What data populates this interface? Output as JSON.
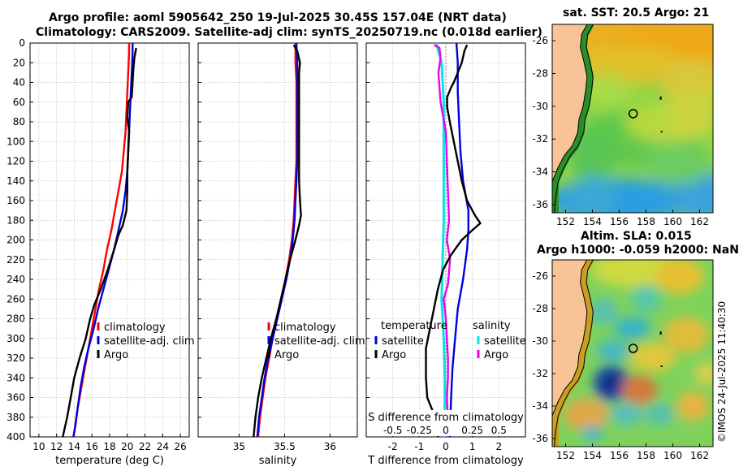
{
  "titles": {
    "line1": "Argo profile: aoml 5905642_250 19-Jul-2025 30.45S 157.04E (NRT data)",
    "line2": "Climatology: CARS2009. Satellite-adj clim: synTS_20250719.nc (0.018d earlier)"
  },
  "copyright": "©IMOS 24-Jul-2025 11:40:30",
  "colors": {
    "climatology": "#ff0000",
    "satellite": "#0000dd",
    "argo": "#000000",
    "sal_sat": "#00e5e5",
    "sal_argo": "#ee00ee",
    "grid": "#c8c8c8",
    "land": "#f8c396"
  },
  "chart_data": [
    {
      "type": "line",
      "id": "temperature",
      "xlabel": "temperature (deg C)",
      "ylabel": "",
      "xlim": [
        9,
        27
      ],
      "ylim": [
        400,
        0
      ],
      "xticks": [
        "10",
        "12",
        "14",
        "16",
        "18",
        "20",
        "22",
        "24",
        "26"
      ],
      "yticks": [
        "0",
        "20",
        "40",
        "60",
        "80",
        "100",
        "120",
        "140",
        "160",
        "180",
        "200",
        "220",
        "240",
        "260",
        "280",
        "300",
        "320",
        "340",
        "360",
        "380",
        "400"
      ],
      "legend": [
        "climatology",
        "satellite-adj. clim",
        "Argo"
      ],
      "series": [
        {
          "name": "climatology",
          "points": [
            [
              20.2,
              0
            ],
            [
              20.2,
              10
            ],
            [
              20.1,
              30
            ],
            [
              20.0,
              50
            ],
            [
              19.9,
              70
            ],
            [
              19.8,
              90
            ],
            [
              19.6,
              110
            ],
            [
              19.4,
              130
            ],
            [
              19.0,
              150
            ],
            [
              18.6,
              170
            ],
            [
              18.2,
              190
            ],
            [
              17.7,
              210
            ],
            [
              17.3,
              230
            ],
            [
              16.8,
              250
            ],
            [
              16.4,
              270
            ],
            [
              16.0,
              290
            ],
            [
              15.6,
              310
            ],
            [
              15.2,
              330
            ],
            [
              14.8,
              350
            ],
            [
              14.4,
              370
            ],
            [
              14.1,
              390
            ],
            [
              13.9,
              400
            ]
          ]
        },
        {
          "name": "satellite-adj. clim",
          "points": [
            [
              20.6,
              0
            ],
            [
              20.6,
              10
            ],
            [
              20.5,
              30
            ],
            [
              20.4,
              50
            ],
            [
              20.3,
              70
            ],
            [
              20.2,
              90
            ],
            [
              20.1,
              110
            ],
            [
              20.0,
              130
            ],
            [
              19.8,
              150
            ],
            [
              19.5,
              170
            ],
            [
              19.0,
              190
            ],
            [
              18.5,
              210
            ],
            [
              17.9,
              230
            ],
            [
              17.3,
              250
            ],
            [
              16.7,
              270
            ],
            [
              16.2,
              290
            ],
            [
              15.6,
              310
            ],
            [
              15.1,
              330
            ],
            [
              14.7,
              350
            ],
            [
              14.4,
              370
            ],
            [
              14.1,
              390
            ],
            [
              13.9,
              400
            ]
          ]
        },
        {
          "name": "Argo",
          "points": [
            [
              21.0,
              5
            ],
            [
              20.8,
              15
            ],
            [
              20.7,
              25
            ],
            [
              20.6,
              40
            ],
            [
              20.5,
              55
            ],
            [
              20.1,
              60
            ],
            [
              20.0,
              75
            ],
            [
              20.2,
              90
            ],
            [
              20.1,
              110
            ],
            [
              20.0,
              130
            ],
            [
              20.0,
              150
            ],
            [
              19.9,
              170
            ],
            [
              19.5,
              185
            ],
            [
              19.0,
              195
            ],
            [
              18.5,
              210
            ],
            [
              17.8,
              230
            ],
            [
              17.0,
              250
            ],
            [
              16.3,
              265
            ],
            [
              15.8,
              280
            ],
            [
              15.3,
              300
            ],
            [
              14.6,
              320
            ],
            [
              14.0,
              340
            ],
            [
              13.6,
              360
            ],
            [
              13.2,
              380
            ],
            [
              12.7,
              400
            ]
          ]
        }
      ]
    },
    {
      "type": "line",
      "id": "salinity",
      "xlabel": "salinity",
      "ylabel": "",
      "xlim": [
        34.55,
        36.3
      ],
      "ylim": [
        400,
        0
      ],
      "xticks": [
        "35",
        "35.5",
        "36"
      ],
      "legend": [
        "climatology",
        "satellite-adj. clim",
        "Argo"
      ],
      "series": [
        {
          "name": "climatology",
          "points": [
            [
              35.62,
              0
            ],
            [
              35.62,
              20
            ],
            [
              35.63,
              40
            ],
            [
              35.63,
              60
            ],
            [
              35.63,
              80
            ],
            [
              35.63,
              100
            ],
            [
              35.63,
              120
            ],
            [
              35.62,
              140
            ],
            [
              35.61,
              160
            ],
            [
              35.6,
              180
            ],
            [
              35.58,
              200
            ],
            [
              35.55,
              220
            ],
            [
              35.51,
              240
            ],
            [
              35.47,
              260
            ],
            [
              35.42,
              280
            ],
            [
              35.37,
              300
            ],
            [
              35.33,
              320
            ],
            [
              35.29,
              340
            ],
            [
              35.26,
              360
            ],
            [
              35.23,
              380
            ],
            [
              35.21,
              400
            ]
          ]
        },
        {
          "name": "satellite-adj. clim",
          "points": [
            [
              35.63,
              0
            ],
            [
              35.64,
              20
            ],
            [
              35.64,
              40
            ],
            [
              35.64,
              60
            ],
            [
              35.64,
              80
            ],
            [
              35.64,
              100
            ],
            [
              35.64,
              120
            ],
            [
              35.63,
              140
            ],
            [
              35.62,
              160
            ],
            [
              35.61,
              180
            ],
            [
              35.59,
              200
            ],
            [
              35.56,
              220
            ],
            [
              35.52,
              240
            ],
            [
              35.47,
              260
            ],
            [
              35.42,
              280
            ],
            [
              35.37,
              300
            ],
            [
              35.32,
              320
            ],
            [
              35.28,
              340
            ],
            [
              35.25,
              360
            ],
            [
              35.22,
              380
            ],
            [
              35.2,
              400
            ]
          ]
        },
        {
          "name": "Argo",
          "points": [
            [
              35.6,
              2
            ],
            [
              35.64,
              8
            ],
            [
              35.67,
              20
            ],
            [
              35.66,
              30
            ],
            [
              35.66,
              50
            ],
            [
              35.66,
              80
            ],
            [
              35.66,
              110
            ],
            [
              35.66,
              140
            ],
            [
              35.67,
              160
            ],
            [
              35.68,
              175
            ],
            [
              35.66,
              185
            ],
            [
              35.62,
              200
            ],
            [
              35.56,
              220
            ],
            [
              35.51,
              240
            ],
            [
              35.46,
              260
            ],
            [
              35.41,
              280
            ],
            [
              35.35,
              300
            ],
            [
              35.3,
              320
            ],
            [
              35.25,
              340
            ],
            [
              35.21,
              360
            ],
            [
              35.18,
              380
            ],
            [
              35.16,
              400
            ]
          ]
        }
      ]
    },
    {
      "type": "line",
      "id": "difference",
      "xlabel": "T difference from climatology",
      "xlabel2": "S difference from climatology",
      "xlim": [
        -3,
        3
      ],
      "ylim": [
        400,
        0
      ],
      "xticks": [
        "-2",
        "-1",
        "0",
        "1",
        "2"
      ],
      "xticks2": [
        "-0.5",
        "-0.25",
        "0",
        "0.25",
        "0.5"
      ],
      "legend_t_title": "temperature",
      "legend_s_title": "salinity",
      "legend_t": [
        "satellite",
        "Argo"
      ],
      "legend_s": [
        "satellite",
        "Argo"
      ],
      "series": [
        {
          "name": "T satellite",
          "points": [
            [
              0.4,
              0
            ],
            [
              0.45,
              20
            ],
            [
              0.45,
              50
            ],
            [
              0.5,
              80
            ],
            [
              0.55,
              110
            ],
            [
              0.65,
              140
            ],
            [
              0.85,
              170
            ],
            [
              0.85,
              190
            ],
            [
              0.8,
              210
            ],
            [
              0.65,
              240
            ],
            [
              0.45,
              270
            ],
            [
              0.35,
              300
            ],
            [
              0.25,
              330
            ],
            [
              0.2,
              360
            ],
            [
              0.15,
              400
            ]
          ]
        },
        {
          "name": "T Argo",
          "points": [
            [
              0.8,
              2
            ],
            [
              0.7,
              8
            ],
            [
              0.6,
              20
            ],
            [
              0.45,
              30
            ],
            [
              0.3,
              40
            ],
            [
              0.2,
              45
            ],
            [
              0.05,
              55
            ],
            [
              0.05,
              65
            ],
            [
              0.15,
              80
            ],
            [
              0.3,
              100
            ],
            [
              0.45,
              120
            ],
            [
              0.6,
              140
            ],
            [
              0.8,
              160
            ],
            [
              1.1,
              175
            ],
            [
              1.3,
              183
            ],
            [
              1.0,
              190
            ],
            [
              0.6,
              200
            ],
            [
              0.2,
              215
            ],
            [
              -0.1,
              230
            ],
            [
              -0.3,
              250
            ],
            [
              -0.45,
              270
            ],
            [
              -0.6,
              290
            ],
            [
              -0.75,
              310
            ],
            [
              -0.75,
              340
            ],
            [
              -0.7,
              360
            ],
            [
              -0.4,
              380
            ],
            [
              -0.3,
              400
            ]
          ]
        },
        {
          "name": "S satellite",
          "points": [
            [
              -0.09,
              0
            ],
            [
              -0.04,
              20
            ],
            [
              -0.02,
              60
            ],
            [
              -0.02,
              100
            ],
            [
              -0.02,
              140
            ],
            [
              -0.02,
              180
            ],
            [
              -0.03,
              220
            ],
            [
              -0.04,
              260
            ],
            [
              -0.02,
              300
            ],
            [
              -0.01,
              340
            ],
            [
              -0.01,
              400
            ]
          ]
        },
        {
          "name": "S Argo",
          "points": [
            [
              -0.11,
              2
            ],
            [
              -0.06,
              5
            ],
            [
              -0.05,
              15
            ],
            [
              -0.07,
              30
            ],
            [
              -0.05,
              60
            ],
            [
              0.0,
              90
            ],
            [
              0.01,
              120
            ],
            [
              0.02,
              150
            ],
            [
              0.03,
              180
            ],
            [
              0.01,
              200
            ],
            [
              0.04,
              220
            ],
            [
              0.02,
              245
            ],
            [
              -0.02,
              260
            ],
            [
              0.0,
              280
            ],
            [
              0.01,
              300
            ],
            [
              0.02,
              320
            ],
            [
              0.02,
              340
            ],
            [
              0.01,
              360
            ],
            [
              0.02,
              380
            ],
            [
              0.01,
              400
            ]
          ]
        }
      ]
    },
    {
      "type": "heatmap",
      "id": "sst_map",
      "title": "sat. SST: 20.5 Argo: 21",
      "xlim": [
        151,
        163
      ],
      "ylim": [
        -36.5,
        -25
      ],
      "xticks": [
        "152",
        "154",
        "156",
        "158",
        "160",
        "162"
      ],
      "yticks": [
        "-26",
        "-28",
        "-30",
        "-32",
        "-34",
        "-36"
      ],
      "argo_position": [
        157.04,
        -30.45
      ]
    },
    {
      "type": "heatmap",
      "id": "sla_map",
      "title1": "Altim. SLA: 0.015",
      "title2": "Argo h1000: -0.059 h2000: NaN",
      "xlim": [
        151,
        163
      ],
      "ylim": [
        -36.5,
        -25
      ],
      "xticks": [
        "152",
        "154",
        "156",
        "158",
        "160",
        "162"
      ],
      "yticks": [
        "-26",
        "-28",
        "-30",
        "-32",
        "-34",
        "-36"
      ],
      "argo_position": [
        157.04,
        -30.45
      ]
    }
  ]
}
